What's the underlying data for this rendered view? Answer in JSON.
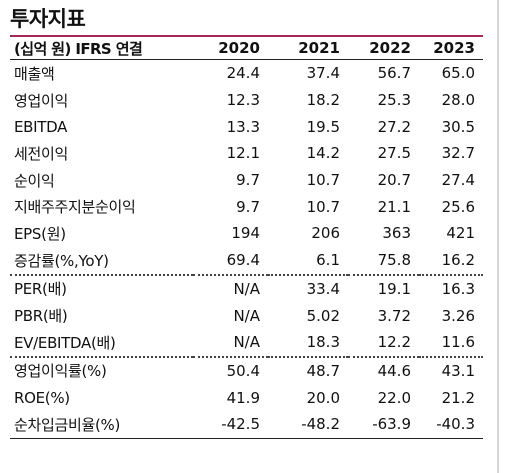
{
  "title": "투자지표",
  "header": [
    "(십억 원) IFRS 연결",
    "2020",
    "2021",
    "2022",
    "2023"
  ],
  "rows": [
    {
      "label": "매출액",
      "values": [
        "24.4",
        "37.4",
        "56.7",
        "65.0"
      ]
    },
    {
      "label": "영업이익",
      "values": [
        "12.3",
        "18.2",
        "25.3",
        "28.0"
      ]
    },
    {
      "label": "EBITDA",
      "values": [
        "13.3",
        "19.5",
        "27.2",
        "30.5"
      ]
    },
    {
      "label": "세전이익",
      "values": [
        "12.1",
        "14.2",
        "27.5",
        "32.7"
      ]
    },
    {
      "label": "순이익",
      "values": [
        "9.7",
        "10.7",
        "20.7",
        "27.4"
      ]
    },
    {
      "label": "지배주주지분순이익",
      "values": [
        "9.7",
        "10.7",
        "21.1",
        "25.6"
      ]
    },
    {
      "label": "EPS(원)",
      "values": [
        "194",
        "206",
        "363",
        "421"
      ]
    },
    {
      "label": "증감률(%,YoY)",
      "values": [
        "69.4",
        "6.1",
        "75.8",
        "16.2"
      ]
    },
    {
      "label": "PER(배)",
      "values": [
        "N/A",
        "33.4",
        "19.1",
        "16.3"
      ]
    },
    {
      "label": "PBR(배)",
      "values": [
        "N/A",
        "5.02",
        "3.72",
        "3.26"
      ]
    },
    {
      "label": "EV/EBITDA(배)",
      "values": [
        "N/A",
        "18.3",
        "12.2",
        "11.6"
      ]
    },
    {
      "label": "영업이익률(%)",
      "values": [
        "50.4",
        "48.7",
        "44.6",
        "43.1"
      ]
    },
    {
      "label": "ROE(%)",
      "values": [
        "41.9",
        "20.0",
        "22.0",
        "21.2"
      ]
    },
    {
      "label": "순차입금비율(%)",
      "values": [
        "-42.5",
        "-48.2",
        "-63.9",
        "-40.3"
      ]
    }
  ],
  "colors": {
    "accent_rule": "#a52a5a",
    "text": "#111111"
  }
}
